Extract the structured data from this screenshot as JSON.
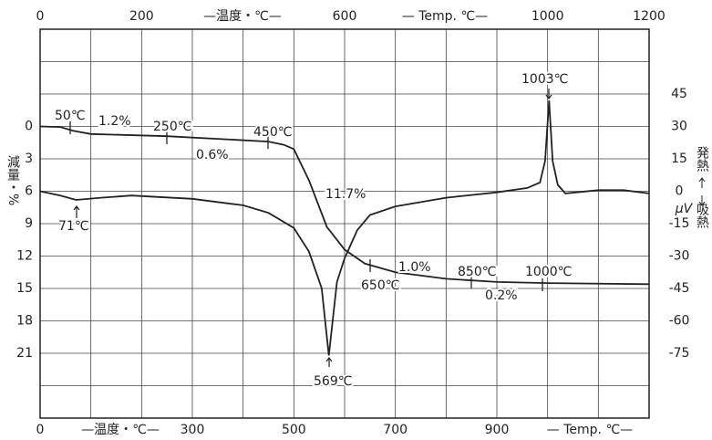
{
  "chart_data": {
    "type": "line",
    "top_axis_labels": [
      "—温度・℃—",
      "— Temp. ℃—"
    ],
    "bottom_axis_labels": [
      "—温度・℃—",
      "— Temp. ℃—"
    ],
    "ylabel": "減量・%",
    "y2label": "μV",
    "y2_up_label": "発熱",
    "y2_down_label": "吸熱",
    "xlim": [
      0,
      1200
    ],
    "xticks": [
      0,
      300,
      500,
      700,
      900
    ],
    "top_xticks": [
      0,
      200,
      600,
      1000,
      1200
    ],
    "x_grid": [
      0,
      100,
      200,
      300,
      400,
      500,
      600,
      700,
      800,
      900,
      1000,
      1100,
      1200
    ],
    "ylim": [
      27,
      -9
    ],
    "yticks": [
      0,
      3,
      6,
      9,
      12,
      15,
      18,
      21
    ],
    "y_grid": [
      -9,
      -6,
      -3,
      0,
      3,
      6,
      9,
      12,
      15,
      18,
      21,
      24,
      27
    ],
    "y2lim": [
      -105,
      75
    ],
    "y2ticks": [
      45,
      30,
      15,
      0,
      -15,
      -30,
      -45,
      -60,
      -75
    ],
    "grid": true,
    "series": [
      {
        "color": "#222222",
        "x": [
          0,
          40,
          65,
          100,
          250,
          450,
          480,
          500,
          530,
          565,
          600,
          640,
          700,
          800,
          900,
          1000,
          1200
        ],
        "values": [
          0,
          0.05,
          0.4,
          0.7,
          0.9,
          1.4,
          1.7,
          2.1,
          5,
          9.3,
          11.4,
          12.7,
          13.5,
          14.1,
          14.4,
          14.5,
          14.6
        ]
      },
      {
        "color": "#222222",
        "axis": "y2",
        "x": [
          0,
          40,
          71,
          120,
          180,
          300,
          400,
          450,
          500,
          530,
          555,
          569,
          585,
          600,
          625,
          650,
          700,
          800,
          900,
          960,
          985,
          995,
          1003,
          1010,
          1020,
          1035,
          1100,
          1150,
          1200
        ],
        "values": [
          0,
          -2,
          -4,
          -3,
          -2,
          -3.5,
          -6.5,
          -10,
          -17,
          -28,
          -45,
          -76,
          -42,
          -31,
          -18,
          -11,
          -7,
          -3,
          -0.5,
          1.5,
          4,
          14,
          42,
          14,
          3,
          -1,
          0.5,
          0.5,
          -1
        ]
      }
    ],
    "annotations": [
      "50℃",
      "1.2%",
      "250℃",
      "0.6%",
      "450℃",
      "11.7%",
      "71℃",
      "569℃",
      "650℃",
      "1.0%",
      "850℃",
      "1000℃",
      "0.2%",
      "1003℃"
    ]
  }
}
